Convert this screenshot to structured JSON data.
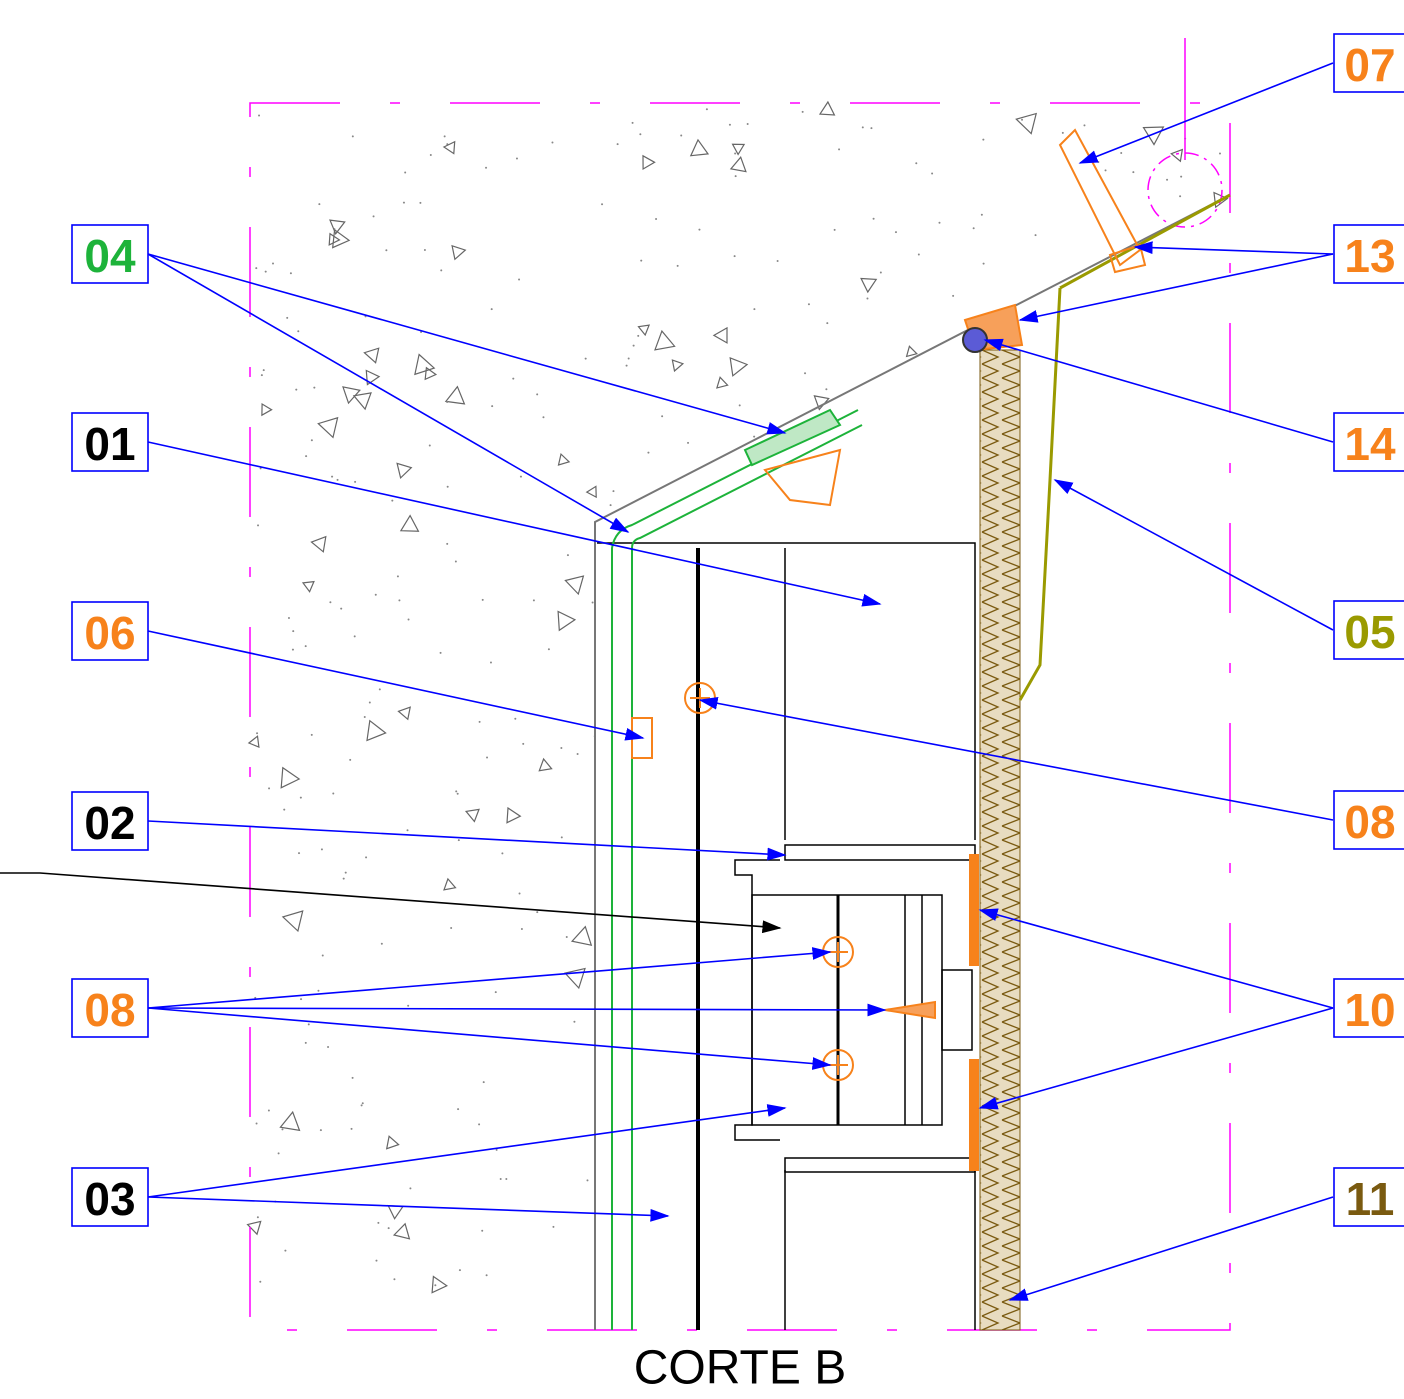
{
  "title": "CORTE B",
  "labels_left": [
    {
      "text": "04"
    },
    {
      "text": "01"
    },
    {
      "text": "06"
    },
    {
      "text": "02"
    },
    {
      "text": "08"
    },
    {
      "text": "03"
    }
  ],
  "labels_right": [
    {
      "text": "07"
    },
    {
      "text": "13"
    },
    {
      "text": "14"
    },
    {
      "text": "05"
    },
    {
      "text": "08"
    },
    {
      "text": "10"
    },
    {
      "text": "11"
    }
  ]
}
